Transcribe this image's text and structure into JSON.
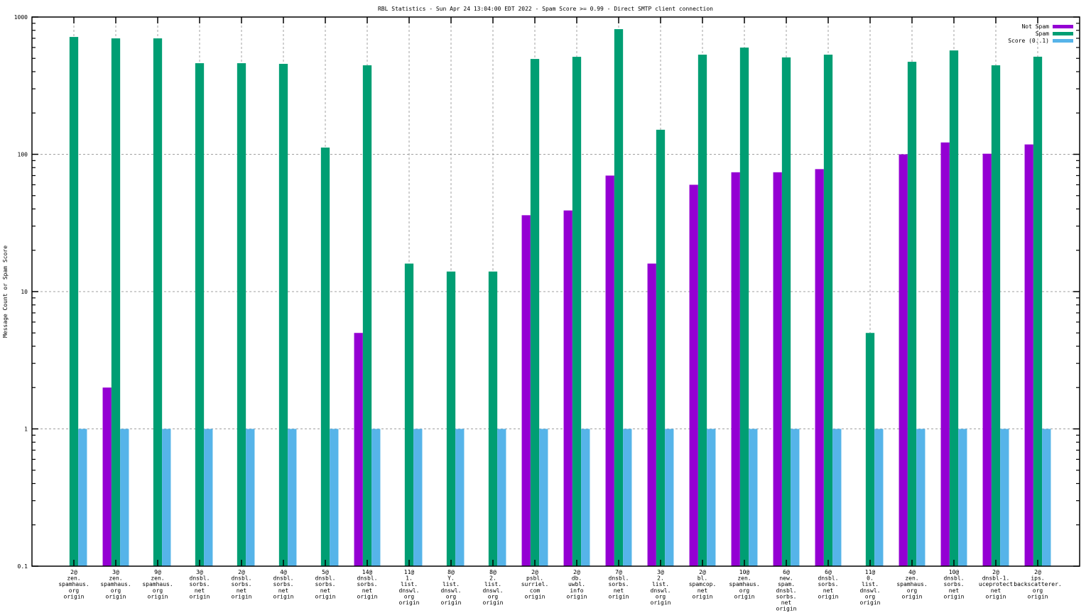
{
  "chart_data": {
    "type": "bar",
    "title": "RBL Statistics - Sun Apr 24 13:04:00 EDT 2022 - Spam Score >= 0.99 - Direct SMTP client connection",
    "xlabel": "",
    "ylabel": "Message Count or Spam Score",
    "yscale": "log",
    "ylim": [
      0.1,
      1000
    ],
    "yticks": [
      "0.1",
      "1",
      "10",
      "100",
      "1000"
    ],
    "grid": true,
    "legend_position": "top-right",
    "categories": [
      [
        "2@",
        "zen.",
        "spamhaus.",
        "org",
        "origin"
      ],
      [
        "3@",
        "zen.",
        "spamhaus.",
        "org",
        "origin"
      ],
      [
        "9@",
        "zen.",
        "spamhaus.",
        "org",
        "origin"
      ],
      [
        "3@",
        "dnsbl.",
        "sorbs.",
        "net",
        "origin"
      ],
      [
        "2@",
        "dnsbl.",
        "sorbs.",
        "net",
        "origin"
      ],
      [
        "4@",
        "dnsbl.",
        "sorbs.",
        "net",
        "origin"
      ],
      [
        "5@",
        "dnsbl.",
        "sorbs.",
        "net",
        "origin"
      ],
      [
        "14@",
        "dnsbl.",
        "sorbs.",
        "net",
        "origin"
      ],
      [
        "11@",
        "1.",
        "list.",
        "dnswl.",
        "org",
        "origin"
      ],
      [
        "8@",
        "Y.",
        "list.",
        "dnswl.",
        "org",
        "origin"
      ],
      [
        "8@",
        "2.",
        "list.",
        "dnswl.",
        "org",
        "origin"
      ],
      [
        "2@",
        "psbl.",
        "surriel.",
        "com",
        "origin"
      ],
      [
        "2@",
        "db.",
        "uwbl.",
        "info",
        "origin"
      ],
      [
        "7@",
        "dnsbl.",
        "sorbs.",
        "net",
        "origin"
      ],
      [
        "3@",
        "2.",
        "list.",
        "dnswl.",
        "org",
        "origin"
      ],
      [
        "2@",
        "bl.",
        "spamcop.",
        "net",
        "origin"
      ],
      [
        "10@",
        "zen.",
        "spamhaus.",
        "org",
        "origin"
      ],
      [
        "6@",
        "new.",
        "spam.",
        "dnsbl.",
        "sorbs.",
        "net",
        "origin"
      ],
      [
        "6@",
        "dnsbl.",
        "sorbs.",
        "net",
        "origin"
      ],
      [
        "11@",
        "0.",
        "list.",
        "dnswl.",
        "org",
        "origin"
      ],
      [
        "4@",
        "zen.",
        "spamhaus.",
        "org",
        "origin"
      ],
      [
        "10@",
        "dnsbl.",
        "sorbs.",
        "net",
        "origin"
      ],
      [
        "2@",
        "dnsbl-1.",
        "uceprotect",
        "net",
        "origin"
      ],
      [
        "2@",
        "ips.",
        "backscatterer.",
        "org",
        "origin"
      ]
    ],
    "series": [
      {
        "name": "Not Spam",
        "color": "#9400d3",
        "values": [
          0,
          2,
          0,
          0,
          0,
          0,
          0,
          5,
          0,
          0,
          0,
          36,
          39,
          70,
          16,
          60,
          74,
          74,
          78,
          0,
          100,
          122,
          101,
          118
        ]
      },
      {
        "name": "Spam",
        "color": "#009e73",
        "values": [
          716,
          699,
          699,
          461,
          461,
          456,
          112,
          445,
          16,
          14,
          14,
          495,
          513,
          816,
          151,
          532,
          599,
          508,
          532,
          5,
          472,
          571,
          445,
          514
        ]
      },
      {
        "name": "Score (0..1)",
        "color": "#56b4e9",
        "values": [
          1,
          1,
          1,
          1,
          1,
          1,
          1,
          1,
          1,
          1,
          1,
          1,
          1,
          1,
          1,
          1,
          1,
          1,
          1,
          1,
          1,
          1,
          1,
          1
        ]
      }
    ]
  }
}
